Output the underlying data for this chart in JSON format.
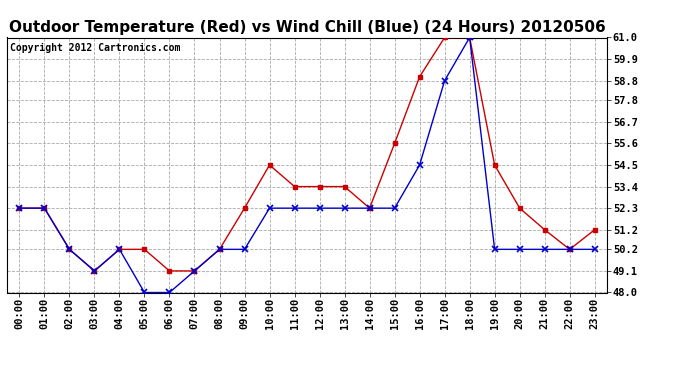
{
  "title": "Outdoor Temperature (Red) vs Wind Chill (Blue) (24 Hours) 20120506",
  "copyright": "Copyright 2012 Cartronics.com",
  "x_labels": [
    "00:00",
    "01:00",
    "02:00",
    "03:00",
    "04:00",
    "05:00",
    "06:00",
    "07:00",
    "08:00",
    "09:00",
    "10:00",
    "11:00",
    "12:00",
    "13:00",
    "14:00",
    "15:00",
    "16:00",
    "17:00",
    "18:00",
    "19:00",
    "20:00",
    "21:00",
    "22:00",
    "23:00"
  ],
  "temp_red": [
    52.3,
    52.3,
    50.2,
    49.1,
    50.2,
    50.2,
    49.1,
    49.1,
    50.2,
    52.3,
    54.5,
    53.4,
    53.4,
    53.4,
    52.3,
    55.6,
    59.0,
    61.0,
    61.0,
    54.5,
    52.3,
    51.2,
    50.2,
    51.2
  ],
  "wind_chill_blue": [
    52.3,
    52.3,
    50.2,
    49.1,
    50.2,
    48.0,
    48.0,
    49.1,
    50.2,
    50.2,
    52.3,
    52.3,
    52.3,
    52.3,
    52.3,
    52.3,
    54.5,
    58.8,
    61.0,
    50.2,
    50.2,
    50.2,
    50.2,
    50.2
  ],
  "ylim": [
    48.0,
    61.0
  ],
  "yticks": [
    48.0,
    49.1,
    50.2,
    51.2,
    52.3,
    53.4,
    54.5,
    55.6,
    56.7,
    57.8,
    58.8,
    59.9,
    61.0
  ],
  "red_color": "#cc0000",
  "blue_color": "#0000cc",
  "grid_color": "#aaaaaa",
  "bg_color": "#ffffff",
  "title_fontsize": 11,
  "copyright_fontsize": 7,
  "tick_fontsize": 7.5
}
